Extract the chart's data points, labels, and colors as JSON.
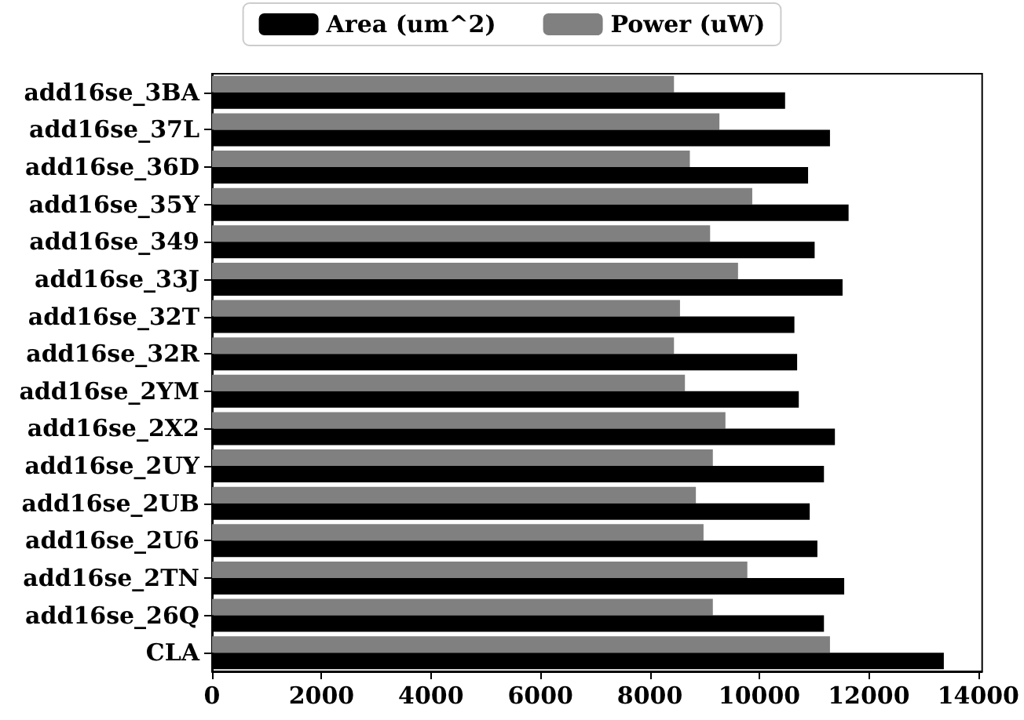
{
  "chart_data": {
    "type": "bar",
    "orientation": "horizontal",
    "categories": [
      "add16se_3BA",
      "add16se_37L",
      "add16se_36D",
      "add16se_35Y",
      "add16se_349",
      "add16se_33J",
      "add16se_32T",
      "add16se_32R",
      "add16se_2YM",
      "add16se_2X2",
      "add16se_2UY",
      "add16se_2UB",
      "add16se_2U6",
      "add16se_2TN",
      "add16se_26Q",
      "CLA"
    ],
    "series": [
      {
        "name": "Area (um^2)",
        "color": "#000000",
        "values": [
          10470,
          11290,
          10890,
          11630,
          11010,
          11520,
          10640,
          10690,
          10720,
          11380,
          11180,
          10920,
          11060,
          11550,
          11180,
          13370
        ]
      },
      {
        "name": "Power (uW)",
        "color": "#808080",
        "values": [
          8440,
          9270,
          8730,
          9870,
          9100,
          9610,
          8550,
          8440,
          8640,
          9380,
          9150,
          8840,
          8980,
          9780,
          9150,
          11290
        ]
      }
    ],
    "xlim": [
      0,
      14070
    ],
    "xticks": [
      0,
      2000,
      4000,
      6000,
      8000,
      10000,
      12000,
      14000
    ],
    "grid": false,
    "legend": "top"
  }
}
